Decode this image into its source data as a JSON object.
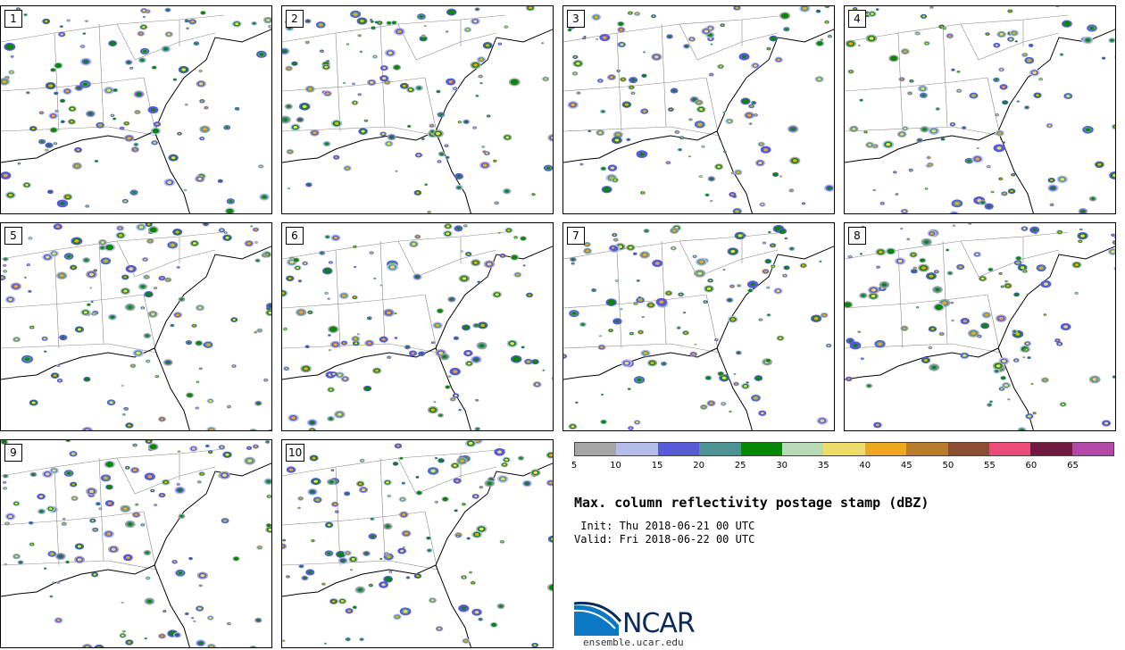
{
  "panels": [
    {
      "label": "1",
      "seed": 11
    },
    {
      "label": "2",
      "seed": 23
    },
    {
      "label": "3",
      "seed": 37
    },
    {
      "label": "4",
      "seed": 41
    },
    {
      "label": "5",
      "seed": 53
    },
    {
      "label": "6",
      "seed": 67
    },
    {
      "label": "7",
      "seed": 71
    },
    {
      "label": "8",
      "seed": 89
    },
    {
      "label": "9",
      "seed": 97
    },
    {
      "label": "10",
      "seed": 103
    }
  ],
  "colorbar": {
    "ticks": [
      "5",
      "10",
      "15",
      "20",
      "25",
      "30",
      "35",
      "40",
      "45",
      "50",
      "55",
      "60",
      "65"
    ],
    "colors": [
      "#a5a5a5",
      "#b4bdea",
      "#575bd8",
      "#4e9494",
      "#088608",
      "#b6dbb5",
      "#eedc6a",
      "#eca91e",
      "#b87c2f",
      "#8b4e30",
      "#ed4c78",
      "#6d1a3e",
      "#b04aa6"
    ]
  },
  "title": "Max. column reflectivity postage stamp (dBZ)",
  "init_text": " Init: Thu 2018-06-21 00 UTC",
  "valid_text": "Valid: Fri 2018-06-22 00 UTC",
  "logo": {
    "text": "NCAR",
    "url": "ensemble.ucar.edu"
  }
}
